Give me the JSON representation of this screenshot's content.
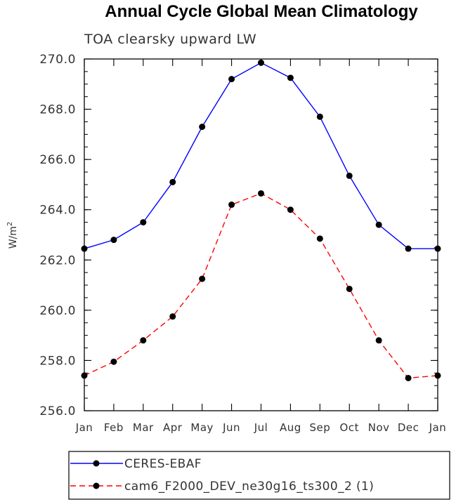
{
  "chart_data": {
    "type": "line",
    "title": "Annual Cycle Global Mean Climatology",
    "subtitle": "TOA clearsky upward LW",
    "ylabel_base": "W/m",
    "ylabel_exponent": "2",
    "categories": [
      "Jan",
      "Feb",
      "Mar",
      "Apr",
      "May",
      "Jun",
      "Jul",
      "Aug",
      "Sep",
      "Oct",
      "Nov",
      "Dec",
      "Jan"
    ],
    "ylim": [
      256.0,
      270.0
    ],
    "yticks": [
      "256.0",
      "258.0",
      "260.0",
      "262.0",
      "264.0",
      "266.0",
      "268.0",
      "270.0"
    ],
    "series": [
      {
        "name": "CERES-EBAF",
        "color": "#0000ff",
        "line_style": "solid",
        "marker": "filled-circle",
        "values": [
          262.45,
          262.8,
          263.5,
          265.1,
          267.3,
          269.2,
          269.85,
          269.25,
          267.7,
          265.35,
          263.4,
          262.45,
          262.45
        ]
      },
      {
        "name": "cam6_F2000_DEV_ne30g16_ts300_2 (1)",
        "color": "#ff0000",
        "line_style": "dashed",
        "marker": "filled-circle",
        "values": [
          257.4,
          257.95,
          258.8,
          259.75,
          261.25,
          264.2,
          264.65,
          264.0,
          262.85,
          260.85,
          258.8,
          257.3,
          257.4
        ]
      }
    ],
    "legend_position": "bottom-left, below plot",
    "grid": false
  }
}
